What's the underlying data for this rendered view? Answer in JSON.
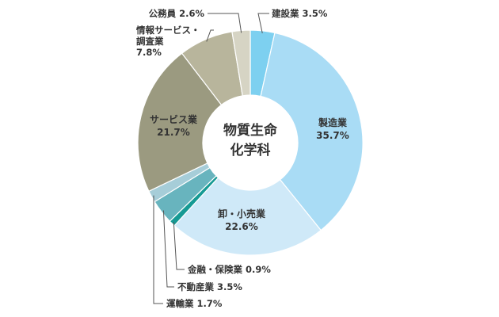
{
  "chart_data": {
    "type": "pie",
    "title": "物質生命化学科",
    "title_lines": [
      "物質生命",
      "化学科"
    ],
    "slices": [
      {
        "name": "建設業",
        "value": 3.5,
        "label": "建設業 3.5%",
        "color": "#7dd0f0"
      },
      {
        "name": "製造業",
        "value": 35.7,
        "label_lines": [
          "製造業",
          "35.7%"
        ],
        "color": "#a9dcf5"
      },
      {
        "name": "卸・小売業",
        "value": 22.6,
        "label_lines": [
          "卸・小売業",
          "22.6%"
        ],
        "color": "#cfe9f8"
      },
      {
        "name": "金融・保険業",
        "value": 0.9,
        "label": "金融・保険業 0.9%",
        "color": "#169a94"
      },
      {
        "name": "不動産業",
        "value": 3.5,
        "label": "不動産業 3.5%",
        "color": "#68b4be"
      },
      {
        "name": "運輸業",
        "value": 1.7,
        "label": "運輸業 1.7%",
        "color": "#a6cdd8"
      },
      {
        "name": "サービス業",
        "value": 21.7,
        "label_lines": [
          "サービス業",
          "21.7%"
        ],
        "color": "#9b9a80"
      },
      {
        "name": "情報サービス・調査業",
        "value": 7.8,
        "label_lines": [
          "情報サービス・",
          "調査業",
          "7.8%"
        ],
        "color": "#b8b59c"
      },
      {
        "name": "公務員",
        "value": 2.6,
        "label": "公務員 2.6%",
        "color": "#d6d4c4"
      }
    ],
    "start_angle_deg": 0,
    "direction": "clockwise",
    "donut": true,
    "legend": "none"
  }
}
